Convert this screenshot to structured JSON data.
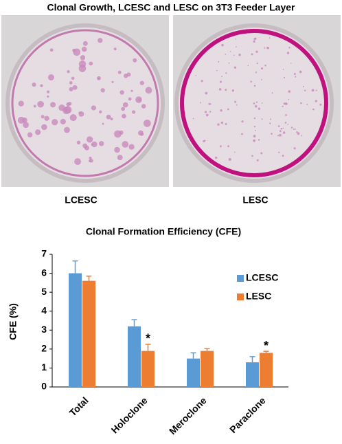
{
  "figure_title": "Clonal Growth, LCESC and LESC on 3T3 Feeder Layer",
  "panels": [
    {
      "label": "LCESC"
    },
    {
      "label": "LESC"
    }
  ],
  "chart_data": {
    "type": "bar",
    "title": "Clonal Formation Efficiency (CFE)",
    "y_label": "CFE (%)",
    "categories": [
      "Total",
      "Holoclone",
      "Meroclone",
      "Paraclone"
    ],
    "series": [
      {
        "name": "LCESC",
        "color": "#5b9bd5",
        "values": [
          6.0,
          3.2,
          1.5,
          1.3
        ],
        "errors": [
          0.65,
          0.35,
          0.3,
          0.3
        ],
        "significance": [
          null,
          null,
          null,
          null
        ]
      },
      {
        "name": "LESC",
        "color": "#ed7d31",
        "values": [
          5.6,
          1.9,
          1.9,
          1.8
        ],
        "errors": [
          0.25,
          0.35,
          0.12,
          0.08
        ],
        "significance": [
          null,
          "*",
          null,
          "*"
        ]
      }
    ],
    "ylim": [
      0,
      7
    ],
    "yticks": [
      0,
      1,
      2,
      3,
      4,
      5,
      6,
      7
    ],
    "grid": false,
    "legend": "right"
  }
}
